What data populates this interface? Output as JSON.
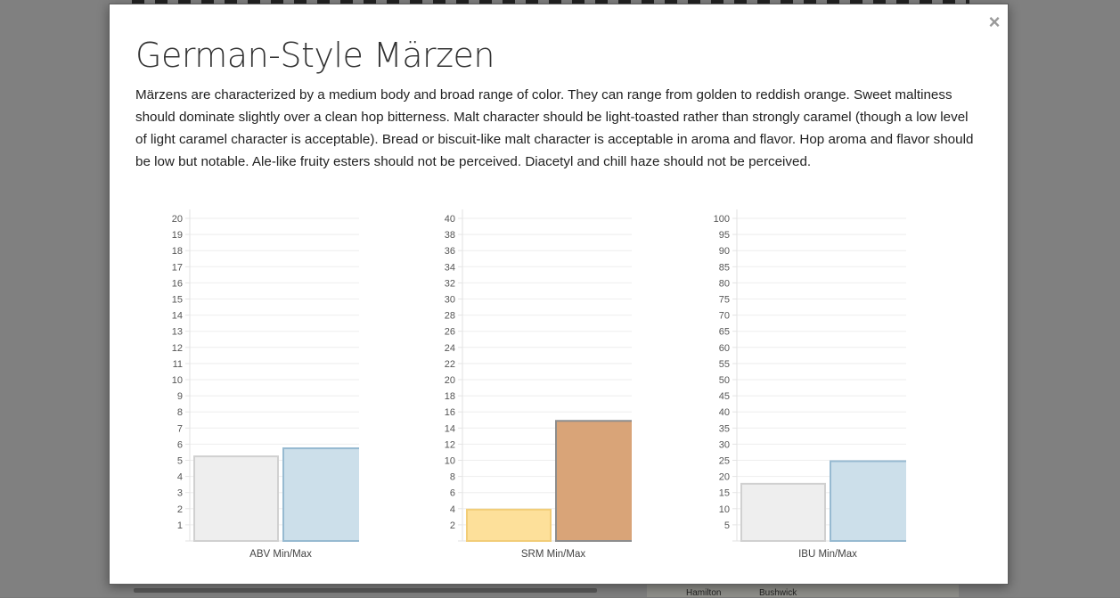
{
  "modal": {
    "close_label": "×",
    "title": "German-Style Märzen",
    "description": "Märzens are characterized by a medium body and broad range of color. They can range from golden to reddish orange. Sweet maltiness should dominate slightly over a clean hop bitterness. Malt character should be light-toasted rather than strongly caramel (though a low level of light caramel character is acceptable). Bread or biscuit-like malt character is acceptable in aroma and flavor. Hop aroma and flavor should be low but notable. Ale-like fruity esters should not be perceived. Diacetyl and chill haze should not be perceived."
  },
  "background": {
    "map_labels": [
      "Hamilton",
      "Bushwick"
    ]
  },
  "chart_data": [
    {
      "type": "bar",
      "categories": [
        "ABV Min/Max"
      ],
      "series": [
        {
          "values": [
            5.3
          ],
          "fill": "#eeeeee",
          "stroke": "#d0d0d0"
        },
        {
          "values": [
            5.8
          ],
          "fill": "#ccdfea",
          "stroke": "#97bad1"
        }
      ],
      "ylim": [
        0,
        20
      ],
      "y_ticks": [
        1,
        2,
        3,
        4,
        5,
        6,
        7,
        8,
        9,
        10,
        11,
        12,
        13,
        14,
        15,
        16,
        17,
        18,
        19,
        20
      ],
      "grid": true
    },
    {
      "type": "bar",
      "categories": [
        "SRM Min/Max"
      ],
      "series": [
        {
          "values": [
            4
          ],
          "fill": "#fde09a",
          "stroke": "#f2cd78"
        },
        {
          "values": [
            15
          ],
          "fill": "#d9a478",
          "stroke": "#8d8d8d"
        }
      ],
      "ylim": [
        0,
        40
      ],
      "y_ticks": [
        2,
        4,
        6,
        8,
        10,
        12,
        14,
        16,
        18,
        20,
        22,
        24,
        26,
        28,
        30,
        32,
        34,
        36,
        38,
        40
      ],
      "grid": true
    },
    {
      "type": "bar",
      "categories": [
        "IBU Min/Max"
      ],
      "series": [
        {
          "values": [
            18
          ],
          "fill": "#eeeeee",
          "stroke": "#d0d0d0"
        },
        {
          "values": [
            25
          ],
          "fill": "#ccdfea",
          "stroke": "#97bad1"
        }
      ],
      "ylim": [
        0,
        100
      ],
      "y_ticks": [
        5,
        10,
        15,
        20,
        25,
        30,
        35,
        40,
        45,
        50,
        55,
        60,
        65,
        70,
        75,
        80,
        85,
        90,
        95,
        100
      ],
      "grid": true
    }
  ]
}
